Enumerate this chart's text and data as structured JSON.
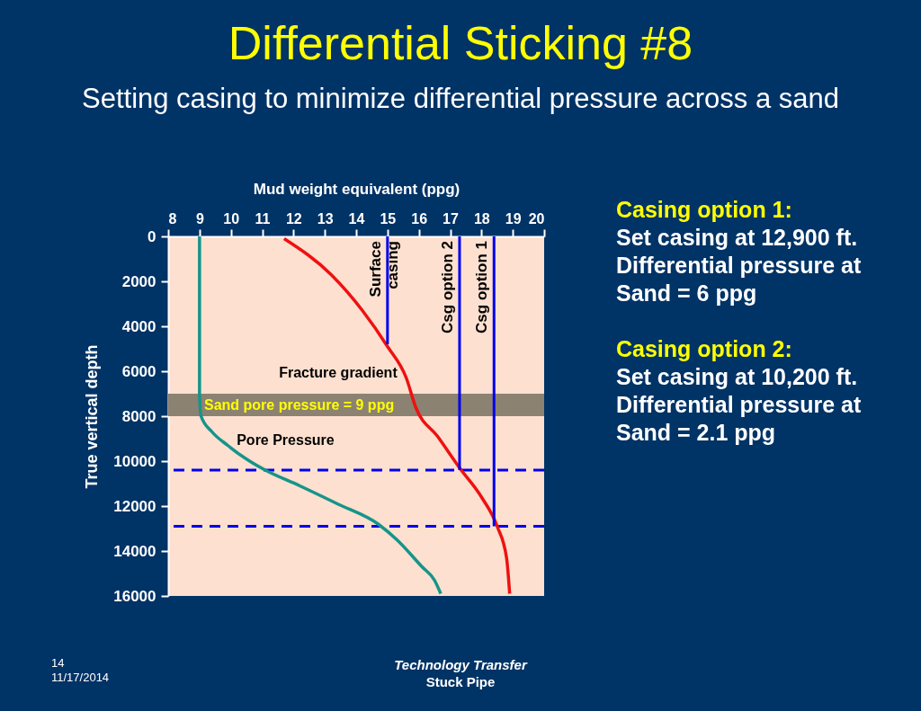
{
  "chart_data": {
    "type": "line",
    "title": "Differential Sticking #8",
    "subtitle": "Setting casing to minimize differential pressure across a sand",
    "xlabel": "Mud weight equivalent (ppg)",
    "ylabel": "True vertical depth",
    "xlim": [
      8,
      20
    ],
    "xticks": [
      8,
      9,
      10,
      11,
      12,
      13,
      14,
      15,
      16,
      17,
      18,
      19,
      20
    ],
    "ylim": [
      16000,
      0
    ],
    "yticks": [
      0,
      2000,
      4000,
      6000,
      8000,
      10000,
      12000,
      14000,
      16000
    ],
    "grid": false,
    "series": [
      {
        "name": "Pore Pressure",
        "color": "#16948a",
        "x": [
          9,
          9,
          9.05,
          9.4,
          9.9,
          10.6,
          11.1,
          12.2,
          13.4,
          14.7,
          15.3,
          16.1,
          16.5,
          16.7
        ],
        "values": [
          0,
          7000,
          8000,
          8700,
          9300,
          10000,
          10400,
          11100,
          11900,
          12800,
          13500,
          14700,
          15300,
          15900
        ]
      },
      {
        "name": "Fracture gradient",
        "color": "#ee1111",
        "x": [
          11.7,
          13.2,
          14.2,
          15.0,
          15.6,
          15.9,
          16.6,
          17.3,
          18.0,
          18.5,
          18.8,
          18.9
        ],
        "values": [
          100,
          1700,
          3300,
          4900,
          6300,
          7600,
          8900,
          10300,
          11600,
          12900,
          14300,
          15900
        ]
      },
      {
        "name": "Surface casing",
        "color": "#0000ee",
        "x": [
          15,
          15
        ],
        "values": [
          0,
          4800
        ]
      },
      {
        "name": "Csg option 2",
        "color": "#0000ee",
        "x": [
          17.3,
          17.3
        ],
        "values": [
          0,
          10400
        ]
      },
      {
        "name": "Csg option 1",
        "color": "#0000ee",
        "x": [
          18.4,
          18.4
        ],
        "values": [
          0,
          12900
        ]
      }
    ],
    "ref_lines": [
      {
        "axis": "y",
        "value": 10400,
        "color": "#0000ee",
        "line_style": "dashed"
      },
      {
        "axis": "y",
        "value": 12900,
        "color": "#0000ee",
        "line_style": "dashed"
      }
    ],
    "bands": [
      {
        "axis": "y",
        "from": 7000,
        "to": 8000,
        "label": "Sand pore pressure = 9 ppg",
        "color": "#8c8272"
      }
    ],
    "annotations": [
      "Casing option 1:",
      "Set casing at 12,900 ft.",
      "Differential pressure at",
      "Sand = 6 ppg",
      "Casing option 2:",
      "Set casing at 10,200 ft.",
      "Differential pressure at",
      "Sand = 2.1 ppg",
      "14",
      "11/17/2014",
      "Technology Transfer",
      "Stuck Pipe"
    ]
  }
}
